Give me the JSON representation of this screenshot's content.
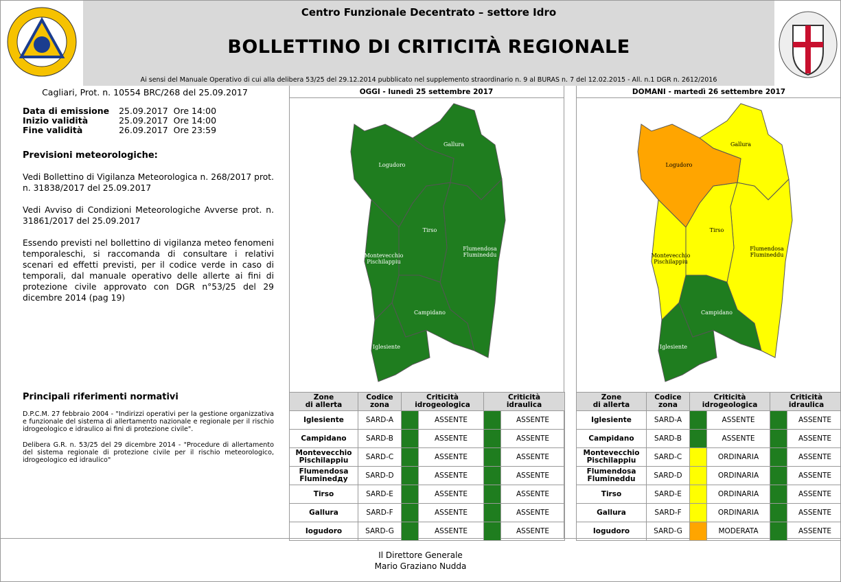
{
  "header": {
    "subtitle": "Centro Funzionale Decentrato – settore Idro",
    "title": "BOLLETTINO DI CRITICITÀ REGIONALE",
    "reference": "Ai sensi del Manuale Operativo di cui alla delibera 53/25 del 29.12.2014 pubblicato nel supplemento straordinario n. 9 al BURAS n. 7 del 12.02.2015 - All. n.1 DGR n. 2612/2016"
  },
  "protocol": "Cagliari, Prot. n. 10554 BRC/268 del 25.09.2017",
  "validity": [
    [
      "Data di emissione",
      "25.09.2017",
      "Ore 14:00"
    ],
    [
      "Inizio validità",
      "25.09.2017",
      "Ore 14:00"
    ],
    [
      "Fine validità",
      "26.09.2017",
      "Ore 23:59"
    ]
  ],
  "forecast": {
    "heading": "Previsioni meteorologiche:",
    "paragraphs": [
      "Vedi Bollettino di Vigilanza Meteorologica n. 268/2017 prot. n. 31838/2017 del 25.09.2017",
      "Vedi Avviso di Condizioni Meteorologiche Avverse prot. n. 31861/2017 del 25.09.2017",
      "Essendo previsti nel bollettino di vigilanza meteo fenomeni temporaleschi, si raccomanda di consultare i relativi scenari ed effetti previsti, per il codice verde in caso di temporali, dal manuale operativo delle allerte ai fini di protezione civile approvato con DGR n°53/25 del 29 dicembre 2014 (pag 19)"
    ]
  },
  "references": {
    "heading": "Principali riferimenti normativi",
    "paragraphs": [
      "D.P.C.M. 27 febbraio 2004 - \"Indirizzi operativi per la gestione organizzativa e funzionale del sistema di allertamento nazionale e regionale per il rischio idrogeologico e idraulico ai fini di protezione civile\".",
      "Delibera G.R. n. 53/25 del 29 dicembre 2014 - \"Procedure di allertamento del sistema regionale di protezione civile per il rischio meteorologico, idrogeologico ed idraulico\""
    ]
  },
  "table_header": [
    [
      "Zone",
      "di allerta"
    ],
    [
      "Codice",
      "zona"
    ],
    [
      "Criticità",
      "idrogeologica"
    ],
    [
      "Criticità",
      "idraulica"
    ]
  ],
  "days": [
    {
      "title": "OGGI - lunedì 25 settembre 2017",
      "map_labels": [
        [
          "Iglesiente"
        ],
        [
          "Campidano"
        ],
        [
          "Montevecchio",
          "Pischilappiu"
        ],
        [
          "Flumendosa",
          "Flumineddu"
        ],
        [
          "Tirso"
        ],
        [
          "Gallura"
        ],
        [
          "Logudoro"
        ]
      ],
      "rows": [
        {
          "zone": "Iglesiente",
          "code": "SARD-A",
          "idro": "ASSENTE",
          "idro_color": "#1f7d1f",
          "idraulica": "ASSENTE",
          "idraulica_color": "#1f7d1f"
        },
        {
          "zone": "Campidano",
          "code": "SARD-B",
          "idro": "ASSENTE",
          "idro_color": "#1f7d1f",
          "idraulica": "ASSENTE",
          "idraulica_color": "#1f7d1f"
        },
        {
          "zone": [
            "Montevecchio",
            "Pischilappiu"
          ],
          "code": "SARD-C",
          "idro": "ASSENTE",
          "idro_color": "#1f7d1f",
          "idraulica": "ASSENTE",
          "idraulica_color": "#1f7d1f"
        },
        {
          "zone": [
            "Flumendosa",
            "Fluminedду"
          ],
          "code": "SARD-D",
          "idro": "ASSENTE",
          "idro_color": "#1f7d1f",
          "idraulica": "ASSENTE",
          "idraulica_color": "#1f7d1f"
        },
        {
          "zone": "Tirso",
          "code": "SARD-E",
          "idro": "ASSENTE",
          "idro_color": "#1f7d1f",
          "idraulica": "ASSENTE",
          "idraulica_color": "#1f7d1f"
        },
        {
          "zone": "Gallura",
          "code": "SARD-F",
          "idro": "ASSENTE",
          "idro_color": "#1f7d1f",
          "idraulica": "ASSENTE",
          "idraulica_color": "#1f7d1f"
        },
        {
          "zone": "Iogudoro",
          "code": "SARD-G",
          "idro": "ASSENTE",
          "idro_color": "#1f7d1f",
          "idraulica": "ASSENTE",
          "idraulica_color": "#1f7d1f"
        }
      ]
    },
    {
      "title": "DOMANI - martedì 26 settembre 2017",
      "map_labels": [
        [
          "Iglesiente"
        ],
        [
          "Campidano"
        ],
        [
          "Montevecchio",
          "Pischilappiu"
        ],
        [
          "Flumendosa",
          "Flumineddu"
        ],
        [
          "Tirso"
        ],
        [
          "Gallura"
        ],
        [
          "Logudoro"
        ]
      ],
      "rows": [
        {
          "zone": "Iglesiente",
          "code": "SARD-A",
          "idro": "ASSENTE",
          "idro_color": "#1f7d1f",
          "idraulica": "ASSENTE",
          "idraulica_color": "#1f7d1f"
        },
        {
          "zone": "Campidano",
          "code": "SARD-B",
          "idro": "ASSENTE",
          "idro_color": "#1f7d1f",
          "idraulica": "ASSENTE",
          "idraulica_color": "#1f7d1f"
        },
        {
          "zone": [
            "Montevecchio",
            "Pischilappiu"
          ],
          "code": "SARD-C",
          "idro": "ORDINARIA",
          "idro_color": "#ffff00",
          "idraulica": "ASSENTE",
          "idraulica_color": "#1f7d1f"
        },
        {
          "zone": [
            "Flumendosa",
            "Flumineddu"
          ],
          "code": "SARD-D",
          "idro": "ORDINARIA",
          "idro_color": "#ffff00",
          "idraulica": "ASSENTE",
          "idraulica_color": "#1f7d1f"
        },
        {
          "zone": "Tirso",
          "code": "SARD-E",
          "idro": "ORDINARIA",
          "idro_color": "#ffff00",
          "idraulica": "ASSENTE",
          "idraulica_color": "#1f7d1f"
        },
        {
          "zone": "Gallura",
          "code": "SARD-F",
          "idro": "ORDINARIA",
          "idro_color": "#ffff00",
          "idraulica": "ASSENTE",
          "idraulica_color": "#1f7d1f"
        },
        {
          "zone": "Iogudoro",
          "code": "SARD-G",
          "idro": "MODERATA",
          "idro_color": "#ffa500",
          "idraulica": "ASSENTE",
          "idraulica_color": "#1f7d1f"
        }
      ]
    }
  ],
  "footer": {
    "role": "Il Direttore Generale",
    "name": "Mario Graziano Nudda"
  }
}
